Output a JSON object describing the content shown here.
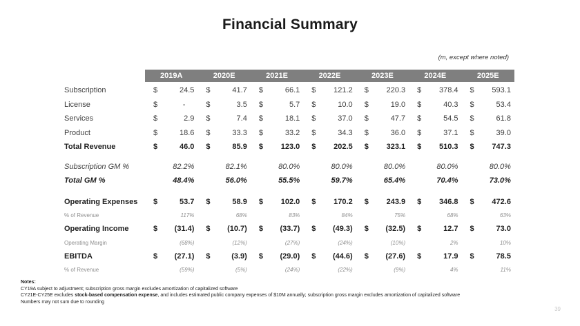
{
  "title": "Financial Summary",
  "units_note": "(m, except where noted)",
  "page_number": "39",
  "colors": {
    "header_bar": "#7f7f7f",
    "header_text": "#ffffff",
    "body_text": "#3e3e3e",
    "bold_text": "#1f1f1f",
    "secondary_text": "#8e8e8e",
    "page_number_text": "#c9c9c9"
  },
  "table": {
    "currency_symbol": "$",
    "nil_symbol": "-",
    "columns": [
      "2019A",
      "2020E",
      "2021E",
      "2022E",
      "2023E",
      "2024E",
      "2025E"
    ],
    "rows": [
      {
        "label": "Subscription",
        "style": "regular",
        "currency": true,
        "values": [
          "24.5",
          "41.7",
          "66.1",
          "121.2",
          "220.3",
          "378.4",
          "593.1"
        ]
      },
      {
        "label": "License",
        "style": "regular",
        "currency": true,
        "values": [
          "-",
          "3.5",
          "5.7",
          "10.0",
          "19.0",
          "40.3",
          "53.4"
        ]
      },
      {
        "label": "Services",
        "style": "regular",
        "currency": true,
        "values": [
          "2.9",
          "7.4",
          "18.1",
          "37.0",
          "47.7",
          "54.5",
          "61.8"
        ]
      },
      {
        "label": "Product",
        "style": "regular",
        "currency": true,
        "values": [
          "18.6",
          "33.3",
          "33.2",
          "34.3",
          "36.0",
          "37.1",
          "39.0"
        ]
      },
      {
        "label": "Total Revenue",
        "style": "bold",
        "currency": true,
        "spacer_after": "sm",
        "values": [
          "46.0",
          "85.9",
          "123.0",
          "202.5",
          "323.1",
          "510.3",
          "747.3"
        ]
      },
      {
        "label": "Subscription GM %",
        "style": "italic",
        "currency": false,
        "values": [
          "82.2%",
          "82.1%",
          "80.0%",
          "80.0%",
          "80.0%",
          "80.0%",
          "80.0%"
        ]
      },
      {
        "label": "Total GM %",
        "style": "bold-italic",
        "currency": false,
        "spacer_after": "lg",
        "values": [
          "48.4%",
          "56.0%",
          "55.5%",
          "59.7%",
          "65.4%",
          "70.4%",
          "73.0%"
        ]
      },
      {
        "label": "Operating Expenses",
        "style": "bold",
        "currency": true,
        "values": [
          "53.7",
          "58.9",
          "102.0",
          "170.2",
          "243.9",
          "346.8",
          "472.6"
        ]
      },
      {
        "label": "% of Revenue",
        "style": "secondary",
        "currency": false,
        "values": [
          "117%",
          "68%",
          "83%",
          "84%",
          "75%",
          "68%",
          "63%"
        ]
      },
      {
        "label": "Operating Income",
        "style": "bold",
        "currency": true,
        "values": [
          "(31.4)",
          "(10.7)",
          "(33.7)",
          "(49.3)",
          "(32.5)",
          "12.7",
          "73.0"
        ]
      },
      {
        "label": "Operating Margin",
        "style": "secondary",
        "currency": false,
        "values": [
          "(68%)",
          "(12%)",
          "(27%)",
          "(24%)",
          "(10%)",
          "2%",
          "10%"
        ]
      },
      {
        "label": "EBITDA",
        "style": "bold",
        "currency": true,
        "values": [
          "(27.1)",
          "(3.9)",
          "(29.0)",
          "(44.6)",
          "(27.6)",
          "17.9",
          "78.5"
        ]
      },
      {
        "label": "% of Revenue",
        "style": "secondary",
        "currency": false,
        "values": [
          "(59%)",
          "(5%)",
          "(24%)",
          "(22%)",
          "(9%)",
          "4%",
          "11%"
        ]
      }
    ]
  },
  "notes": {
    "heading": "Notes:",
    "line1": "CY19A subject to adjustment; subscription gross margin excludes amortization of capitalized software",
    "line2_prefix": "CY21E-CY25E excludes ",
    "line2_bold": "stock-based compensation expense",
    "line2_suffix": ", and includes estimated public company expenses of $10M annually; subscription gross margin excludes amortization of capitalized software",
    "line3": "Numbers may not sum due to rounding"
  }
}
